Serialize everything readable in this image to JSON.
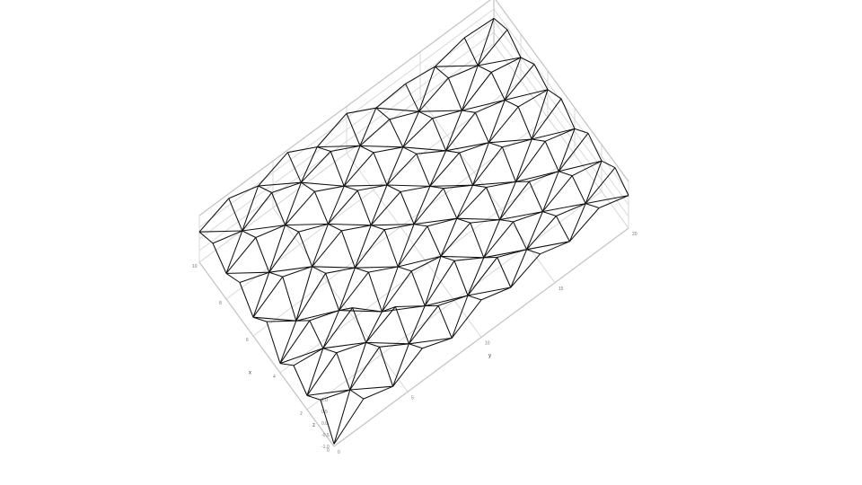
{
  "chart_data": {
    "type": "surface-wireframe",
    "title": "",
    "xlabel": "x",
    "ylabel": "y",
    "zlabel": "z",
    "xlim": [
      0,
      10
    ],
    "ylim": [
      0,
      20
    ],
    "zlim": [
      -1,
      1
    ],
    "grid": true,
    "colors": {
      "wire": "#111111",
      "grid": "#d9d9d9",
      "pane_edge": "#c4c4c4"
    },
    "x": [
      0,
      1,
      2,
      3,
      4,
      5,
      6,
      7,
      8,
      9,
      10
    ],
    "y": [
      0,
      2,
      4,
      6,
      8,
      10,
      12,
      14,
      16,
      18,
      20
    ],
    "z": [
      [
        -0.9,
        0.2,
        -0.4,
        0.1,
        -0.6,
        0.4,
        -0.2,
        0.5,
        0.1,
        0.6,
        0.3
      ],
      [
        0.1,
        -0.3,
        0.5,
        -0.1,
        0.3,
        -0.5,
        0.6,
        0.0,
        0.7,
        0.2,
        0.8
      ],
      [
        -0.3,
        0.6,
        0.0,
        0.7,
        -0.2,
        0.6,
        0.1,
        0.8,
        0.3,
        0.9,
        0.4
      ],
      [
        0.4,
        -0.2,
        0.6,
        -0.4,
        0.5,
        -0.1,
        0.7,
        0.2,
        0.8,
        0.4,
        0.9
      ],
      [
        -0.1,
        0.5,
        -0.3,
        0.4,
        -0.2,
        0.6,
        0.0,
        0.7,
        0.1,
        0.8,
        0.2
      ],
      [
        0.6,
        0.0,
        0.7,
        0.1,
        0.6,
        -0.1,
        0.5,
        0.0,
        0.6,
        0.1,
        0.7
      ],
      [
        0.2,
        0.7,
        -0.1,
        0.6,
        0.0,
        0.5,
        -0.2,
        0.4,
        -0.1,
        0.3,
        0.0
      ],
      [
        0.7,
        0.1,
        0.5,
        -0.2,
        0.4,
        -0.3,
        0.3,
        -0.4,
        0.2,
        -0.3,
        0.1
      ],
      [
        0.3,
        0.6,
        0.0,
        0.5,
        -0.3,
        0.4,
        -0.2,
        0.3,
        -0.4,
        0.2,
        -0.1
      ],
      [
        0.8,
        0.2,
        0.6,
        0.0,
        0.5,
        -0.2,
        0.4,
        -0.1,
        0.3,
        -0.2,
        0.2
      ],
      [
        0.4,
        0.8,
        0.3,
        0.7,
        0.1,
        0.6,
        0.2,
        0.5,
        0.0,
        0.4,
        0.1
      ]
    ]
  }
}
